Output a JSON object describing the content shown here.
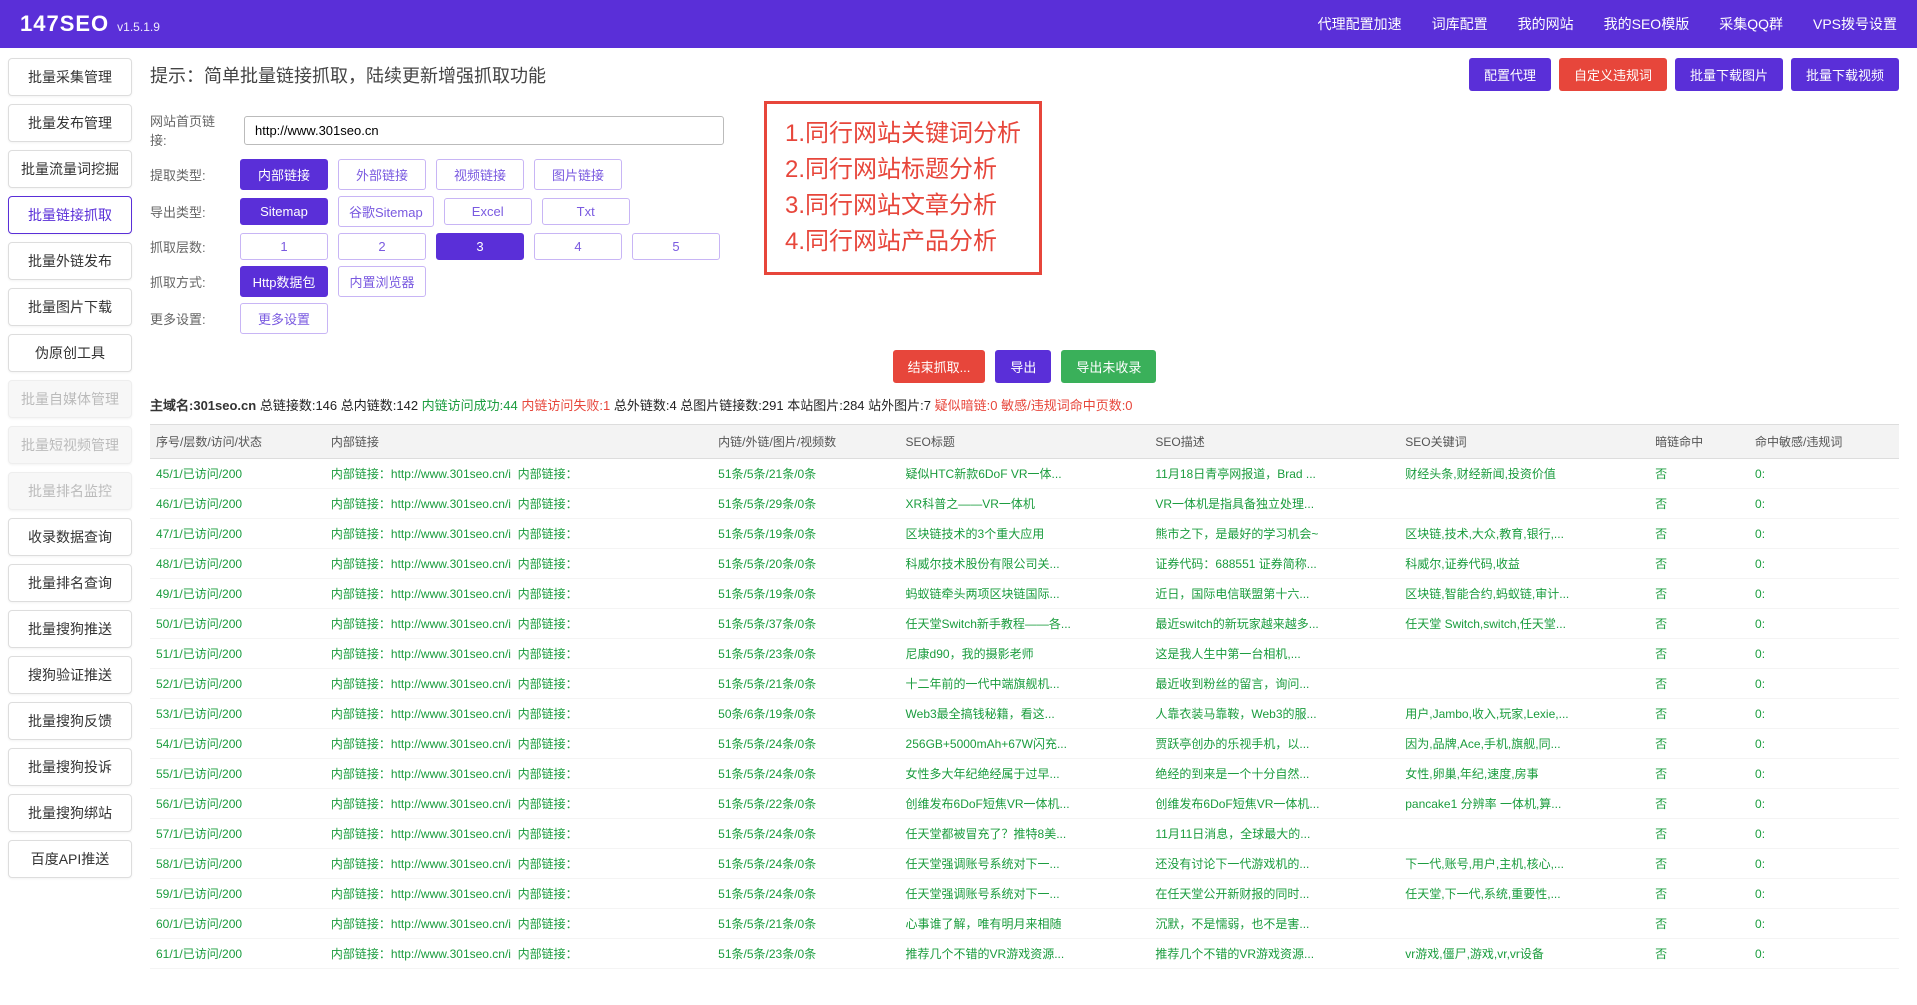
{
  "brand": {
    "name": "147SEO",
    "version": "v1.5.1.9"
  },
  "topnav": [
    "代理配置加速",
    "词库配置",
    "我的网站",
    "我的SEO模版",
    "采集QQ群",
    "VPS拨号设置"
  ],
  "sidebar": {
    "items": [
      {
        "label": "批量采集管理",
        "state": "normal"
      },
      {
        "label": "批量发布管理",
        "state": "normal"
      },
      {
        "label": "批量流量词挖掘",
        "state": "normal"
      },
      {
        "label": "批量链接抓取",
        "state": "active"
      },
      {
        "label": "批量外链发布",
        "state": "normal"
      },
      {
        "label": "批量图片下载",
        "state": "normal"
      },
      {
        "label": "伪原创工具",
        "state": "normal"
      },
      {
        "label": "批量自媒体管理",
        "state": "disabled"
      },
      {
        "label": "批量短视频管理",
        "state": "disabled"
      },
      {
        "label": "批量排名监控",
        "state": "disabled"
      },
      {
        "label": "收录数据查询",
        "state": "normal"
      },
      {
        "label": "批量排名查询",
        "state": "normal"
      },
      {
        "label": "批量搜狗推送",
        "state": "normal"
      },
      {
        "label": "搜狗验证推送",
        "state": "normal"
      },
      {
        "label": "批量搜狗反馈",
        "state": "normal"
      },
      {
        "label": "批量搜狗投诉",
        "state": "normal"
      },
      {
        "label": "批量搜狗绑站",
        "state": "normal"
      },
      {
        "label": "百度API推送",
        "state": "normal"
      }
    ]
  },
  "heading": "提示：简单批量链接抓取，陆续更新增强抓取功能",
  "head_buttons": {
    "proxy": "配置代理",
    "custom_violation": "自定义违规词",
    "dl_img": "批量下载图片",
    "dl_vid": "批量下载视频"
  },
  "form": {
    "url_label": "网站首页链接:",
    "url_value": "http://www.301seo.cn",
    "rows": [
      {
        "label": "提取类型:",
        "options": [
          "内部链接",
          "外部链接",
          "视频链接",
          "图片链接"
        ],
        "selected": 0
      },
      {
        "label": "导出类型:",
        "options": [
          "Sitemap",
          "谷歌Sitemap",
          "Excel",
          "Txt"
        ],
        "selected": 0
      },
      {
        "label": "抓取层数:",
        "options": [
          "1",
          "2",
          "3",
          "4",
          "5"
        ],
        "selected": 2
      },
      {
        "label": "抓取方式:",
        "options": [
          "Http数据包",
          "内置浏览器"
        ],
        "selected": 0
      },
      {
        "label": "更多设置:",
        "options": [
          "更多设置"
        ],
        "selected": -1
      }
    ]
  },
  "analysis_box": [
    "1.同行网站关键词分析",
    "2.同行网站标题分析",
    "3.同行网站文章分析",
    "4.同行网站产品分析"
  ],
  "action_buttons": {
    "stop": "结束抓取...",
    "export": "导出",
    "export_unindexed": "导出未收录"
  },
  "stats": {
    "prefix": "主域名:",
    "domain": "301seo.cn",
    "items": [
      {
        "text": "总链接数:146",
        "cls": "stat-black"
      },
      {
        "text": "总内链数:142",
        "cls": "stat-black"
      },
      {
        "text": "内链访问成功:44",
        "cls": "stat-green"
      },
      {
        "text": "内链访问失败:1",
        "cls": "stat-red"
      },
      {
        "text": "总外链数:4",
        "cls": "stat-black"
      },
      {
        "text": "总图片链接数:291",
        "cls": "stat-black"
      },
      {
        "text": "本站图片:284",
        "cls": "stat-black"
      },
      {
        "text": "站外图片:7",
        "cls": "stat-black"
      },
      {
        "text": "疑似暗链:0",
        "cls": "stat-red"
      },
      {
        "text": "敏感/违规词命中页数:0",
        "cls": "stat-red"
      }
    ]
  },
  "table": {
    "columns": [
      "序号/层数/访问/状态",
      "内部链接",
      "内链/外链/图片/视频数",
      "SEO标题",
      "SEO描述",
      "SEO关键词",
      "暗链命中",
      "命中敏感/违规词"
    ],
    "col_widths": [
      "140px",
      "310px",
      "150px",
      "200px",
      "200px",
      "200px",
      "80px",
      "120px"
    ],
    "link_text": "http://www.301seo.cn/i",
    "rows": [
      {
        "id": "45/1/已访问/200",
        "counts": "51条/5条/21条/0条",
        "title": "疑似HTC新款6DoF VR一体...",
        "desc": "11月18日青亭网报道，Brad ...",
        "kw": "财经头条,财经新闻,投资价值",
        "dark": "否",
        "hit": "0:"
      },
      {
        "id": "46/1/已访问/200",
        "counts": "51条/5条/29条/0条",
        "title": "XR科普之——VR一体机",
        "desc": "VR一体机是指具备独立处理...",
        "kw": "",
        "dark": "否",
        "hit": "0:"
      },
      {
        "id": "47/1/已访问/200",
        "counts": "51条/5条/19条/0条",
        "title": "区块链技术的3个重大应用",
        "desc": "熊市之下，是最好的学习机会~",
        "kw": "区块链,技术,大众,教育,银行,...",
        "dark": "否",
        "hit": "0:"
      },
      {
        "id": "48/1/已访问/200",
        "counts": "51条/5条/20条/0条",
        "title": "科威尔技术股份有限公司关...",
        "desc": "证券代码：688551 证券简称...",
        "kw": "科威尔,证券代码,收益",
        "dark": "否",
        "hit": "0:"
      },
      {
        "id": "49/1/已访问/200",
        "counts": "51条/5条/19条/0条",
        "title": "蚂蚁链牵头两项区块链国际...",
        "desc": "近日，国际电信联盟第十六...",
        "kw": "区块链,智能合约,蚂蚁链,审计...",
        "dark": "否",
        "hit": "0:"
      },
      {
        "id": "50/1/已访问/200",
        "counts": "51条/5条/37条/0条",
        "title": "任天堂Switch新手教程——各...",
        "desc": "最近switch的新玩家越来越多...",
        "kw": "任天堂 Switch,switch,任天堂...",
        "dark": "否",
        "hit": "0:"
      },
      {
        "id": "51/1/已访问/200",
        "counts": "51条/5条/23条/0条",
        "title": "尼康d90，我的摄影老师",
        "desc": "这是我人生中第一台相机,...",
        "kw": "",
        "dark": "否",
        "hit": "0:"
      },
      {
        "id": "52/1/已访问/200",
        "counts": "51条/5条/21条/0条",
        "title": "十二年前的一代中端旗舰机...",
        "desc": "最近收到粉丝的留言，询问...",
        "kw": "",
        "dark": "否",
        "hit": "0:"
      },
      {
        "id": "53/1/已访问/200",
        "counts": "50条/6条/19条/0条",
        "title": "Web3最全搞钱秘籍，看这...",
        "desc": "人靠衣装马靠鞍，Web3的服...",
        "kw": "用户,Jambo,收入,玩家,Lexie,...",
        "dark": "否",
        "hit": "0:"
      },
      {
        "id": "54/1/已访问/200",
        "counts": "51条/5条/24条/0条",
        "title": "256GB+5000mAh+67W闪充...",
        "desc": "贾跃亭创办的乐视手机，以...",
        "kw": "因为,品牌,Ace,手机,旗舰,同...",
        "dark": "否",
        "hit": "0:"
      },
      {
        "id": "55/1/已访问/200",
        "counts": "51条/5条/24条/0条",
        "title": "女性多大年纪绝经属于过早...",
        "desc": "绝经的到来是一个十分自然...",
        "kw": "女性,卵巢,年纪,速度,房事",
        "dark": "否",
        "hit": "0:"
      },
      {
        "id": "56/1/已访问/200",
        "counts": "51条/5条/22条/0条",
        "title": "创维发布6DoF短焦VR一体机...",
        "desc": "创维发布6DoF短焦VR一体机...",
        "kw": "pancake1 分辨率 一体机,算...",
        "dark": "否",
        "hit": "0:"
      },
      {
        "id": "57/1/已访问/200",
        "counts": "51条/5条/24条/0条",
        "title": "任天堂都被冒充了？推特8美...",
        "desc": "11月11日消息，全球最大的...",
        "kw": "",
        "dark": "否",
        "hit": "0:"
      },
      {
        "id": "58/1/已访问/200",
        "counts": "51条/5条/24条/0条",
        "title": "任天堂强调账号系统对下一...",
        "desc": "还没有讨论下一代游戏机的...",
        "kw": "下一代,账号,用户,主机,核心,...",
        "dark": "否",
        "hit": "0:"
      },
      {
        "id": "59/1/已访问/200",
        "counts": "51条/5条/24条/0条",
        "title": "任天堂强调账号系统对下一...",
        "desc": "在任天堂公开新财报的同时...",
        "kw": "任天堂,下一代,系统,重要性,...",
        "dark": "否",
        "hit": "0:"
      },
      {
        "id": "60/1/已访问/200",
        "counts": "51条/5条/21条/0条",
        "title": "心事谁了解，唯有明月来相随",
        "desc": "沉默，不是懦弱，也不是害...",
        "kw": "",
        "dark": "否",
        "hit": "0:"
      },
      {
        "id": "61/1/已访问/200",
        "counts": "51条/5条/23条/0条",
        "title": "推荐几个不错的VR游戏资源...",
        "desc": "推荐几个不错的VR游戏资源...",
        "kw": "vr游戏,僵尸,游戏,vr,vr设备",
        "dark": "否",
        "hit": "0:"
      }
    ]
  }
}
